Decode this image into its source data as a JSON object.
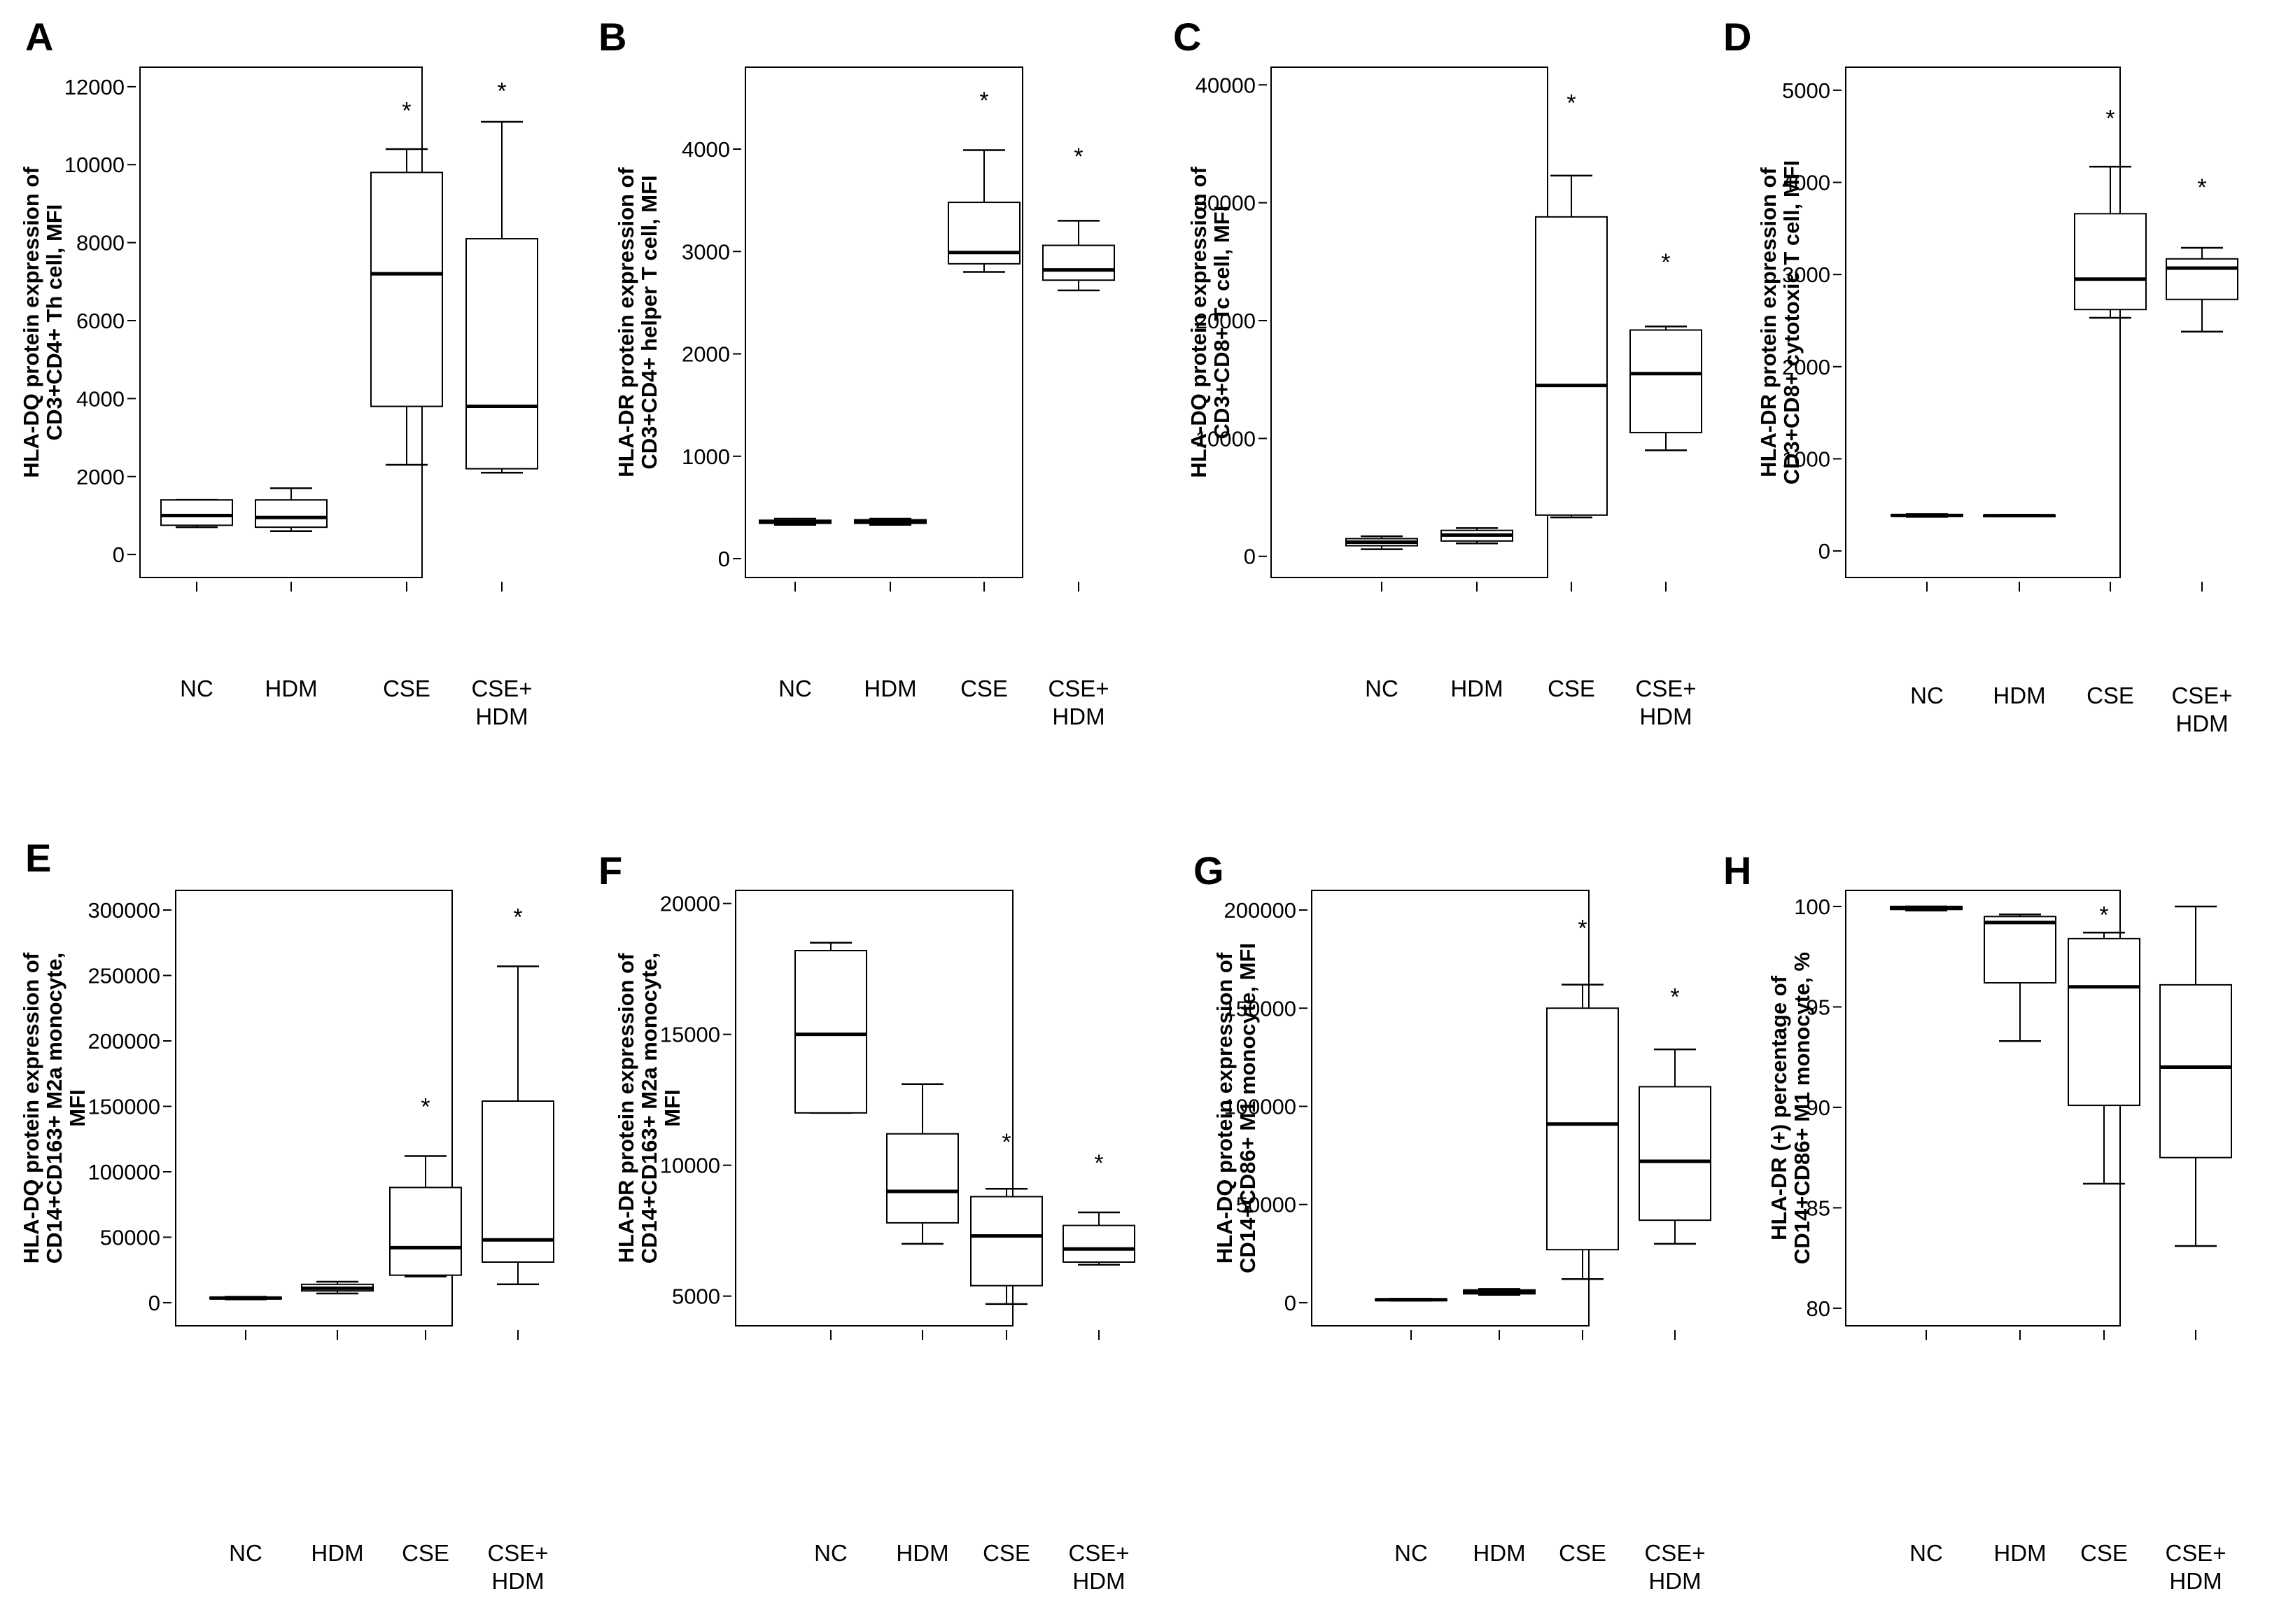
{
  "chart_data": [
    {
      "panel": "A",
      "type": "boxplot",
      "ylabel": [
        "HLA-DQ protein expression of",
        "CD3+CD4+ Th cell, MFI"
      ],
      "ylim": [
        -500,
        12500
      ],
      "yticks": [
        0,
        2000,
        4000,
        6000,
        8000,
        10000,
        12000
      ],
      "categories": [
        [
          "NC"
        ],
        [
          "HDM"
        ],
        [
          "CSE"
        ],
        [
          "CSE+",
          "HDM"
        ]
      ],
      "boxes": [
        {
          "min": 700,
          "q1": 750,
          "median": 1000,
          "q3": 1400,
          "max": 1400,
          "sig": ""
        },
        {
          "min": 600,
          "q1": 700,
          "median": 950,
          "q3": 1400,
          "max": 1700,
          "sig": ""
        },
        {
          "min": 2300,
          "q1": 3800,
          "median": 7200,
          "q3": 9800,
          "max": 10400,
          "sig": "*",
          "sig_value": 11400
        },
        {
          "min": 2100,
          "q1": 2200,
          "median": 3800,
          "q3": 8100,
          "max": 11100,
          "sig": "*",
          "sig_value": 11900
        }
      ]
    },
    {
      "panel": "B",
      "type": "boxplot",
      "ylabel": [
        "HLA-DR protein expression of",
        "CD3+CD4+ helper T cell, MFI"
      ],
      "ylim": [
        -150,
        4800
      ],
      "yticks": [
        0,
        1000,
        2000,
        3000,
        4000
      ],
      "categories": [
        [
          "NC"
        ],
        [
          "HDM"
        ],
        [
          "CSE"
        ],
        [
          "CSE+",
          "HDM"
        ]
      ],
      "boxes": [
        {
          "min": 330,
          "q1": 345,
          "median": 360,
          "q3": 375,
          "max": 390,
          "sig": ""
        },
        {
          "min": 330,
          "q1": 345,
          "median": 360,
          "q3": 380,
          "max": 390,
          "sig": ""
        },
        {
          "min": 2800,
          "q1": 2880,
          "median": 2990,
          "q3": 3480,
          "max": 3990,
          "sig": "*",
          "sig_value": 4480
        },
        {
          "min": 2620,
          "q1": 2720,
          "median": 2820,
          "q3": 3060,
          "max": 3300,
          "sig": "*",
          "sig_value": 3930
        }
      ]
    },
    {
      "panel": "C",
      "type": "boxplot",
      "ylabel": [
        "HLA-DQ protein expression of",
        "CD3+CD8+ Tc cell, MFI"
      ],
      "ylim": [
        -1500,
        41500
      ],
      "yticks": [
        0,
        10000,
        20000,
        30000,
        40000
      ],
      "categories": [
        [
          "NC"
        ],
        [
          "HDM"
        ],
        [
          "CSE"
        ],
        [
          "CSE+",
          "HDM"
        ]
      ],
      "boxes": [
        {
          "min": 600,
          "q1": 900,
          "median": 1200,
          "q3": 1500,
          "max": 1700,
          "sig": ""
        },
        {
          "min": 1100,
          "q1": 1300,
          "median": 1800,
          "q3": 2200,
          "max": 2400,
          "sig": ""
        },
        {
          "min": 3300,
          "q1": 3500,
          "median": 14500,
          "q3": 28800,
          "max": 32300,
          "sig": "*",
          "sig_value": 38500
        },
        {
          "min": 9000,
          "q1": 10500,
          "median": 15500,
          "q3": 19200,
          "max": 19500,
          "sig": "*",
          "sig_value": 25000
        }
      ]
    },
    {
      "panel": "D",
      "type": "boxplot",
      "ylabel": [
        "HLA-DR protein expression of",
        "CD3+CD8+ cytotoxic T cell, MFI"
      ],
      "ylim": [
        -250,
        5250
      ],
      "yticks": [
        0,
        1000,
        2000,
        3000,
        4000,
        5000
      ],
      "categories": [
        [
          "NC"
        ],
        [
          "HDM"
        ],
        [
          "CSE"
        ],
        [
          "CSE+",
          "HDM"
        ]
      ],
      "boxes": [
        {
          "min": 370,
          "q1": 380,
          "median": 385,
          "q3": 395,
          "max": 400,
          "sig": ""
        },
        {
          "min": 375,
          "q1": 378,
          "median": 383,
          "q3": 388,
          "max": 392,
          "sig": ""
        },
        {
          "min": 2530,
          "q1": 2620,
          "median": 2950,
          "q3": 3660,
          "max": 4170,
          "sig": "*",
          "sig_value": 4700
        },
        {
          "min": 2380,
          "q1": 2730,
          "median": 3070,
          "q3": 3170,
          "max": 3290,
          "sig": "*",
          "sig_value": 3950
        }
      ]
    },
    {
      "panel": "E",
      "type": "boxplot",
      "ylabel": [
        "HLA-DQ protein expression of",
        "CD14+CD163+ M2a monocyte,",
        "MFI"
      ],
      "ylim": [
        -15000,
        315000
      ],
      "yticks": [
        0,
        50000,
        100000,
        150000,
        200000,
        250000,
        300000
      ],
      "categories": [
        [
          "NC"
        ],
        [
          "HDM"
        ],
        [
          "CSE"
        ],
        [
          "CSE+",
          "HDM"
        ]
      ],
      "boxes": [
        {
          "min": 2500,
          "q1": 3000,
          "median": 3500,
          "q3": 4000,
          "max": 4500,
          "sig": ""
        },
        {
          "min": 7000,
          "q1": 9000,
          "median": 11000,
          "q3": 14000,
          "max": 16000,
          "sig": ""
        },
        {
          "min": 20000,
          "q1": 21000,
          "median": 42000,
          "q3": 88000,
          "max": 112000,
          "sig": "*",
          "sig_value": 150000
        },
        {
          "min": 14000,
          "q1": 31000,
          "median": 48000,
          "q3": 154000,
          "max": 257000,
          "sig": "*",
          "sig_value": 295000
        }
      ]
    },
    {
      "panel": "F",
      "type": "boxplot",
      "ylabel": [
        "HLA-DR protein expression of",
        "CD14+CD163+ M2a monocyte,",
        "MFI"
      ],
      "ylim": [
        4000,
        20500
      ],
      "yticks": [
        5000,
        10000,
        15000,
        20000
      ],
      "categories": [
        [
          "NC"
        ],
        [
          "HDM"
        ],
        [
          "CSE"
        ],
        [
          "CSE+",
          "HDM"
        ]
      ],
      "boxes": [
        {
          "min": 12000,
          "q1": 12000,
          "median": 15000,
          "q3": 18200,
          "max": 18500,
          "sig": ""
        },
        {
          "min": 7000,
          "q1": 7800,
          "median": 9000,
          "q3": 11200,
          "max": 13100,
          "sig": ""
        },
        {
          "min": 4700,
          "q1": 5400,
          "median": 7300,
          "q3": 8800,
          "max": 9100,
          "sig": "*",
          "sig_value": 10900
        },
        {
          "min": 6200,
          "q1": 6300,
          "median": 6800,
          "q3": 7700,
          "max": 8200,
          "sig": "*",
          "sig_value": 10100
        }
      ]
    },
    {
      "panel": "G",
      "type": "boxplot",
      "ylabel": [
        "HLA-DQ protein expression of",
        "CD14+CD86+ M1 monocyte, MFI"
      ],
      "ylim": [
        -10000,
        210000
      ],
      "yticks": [
        0,
        50000,
        100000,
        150000,
        200000
      ],
      "categories": [
        [
          "NC"
        ],
        [
          "HDM"
        ],
        [
          "CSE"
        ],
        [
          "CSE+",
          "HDM"
        ]
      ],
      "boxes": [
        {
          "min": 1000,
          "q1": 1300,
          "median": 1500,
          "q3": 1800,
          "max": 2000,
          "sig": ""
        },
        {
          "min": 4000,
          "q1": 4500,
          "median": 5500,
          "q3": 6500,
          "max": 7000,
          "sig": ""
        },
        {
          "min": 12000,
          "q1": 27000,
          "median": 91000,
          "q3": 150000,
          "max": 162000,
          "sig": "*",
          "sig_value": 191000
        },
        {
          "min": 30000,
          "q1": 42000,
          "median": 72000,
          "q3": 110000,
          "max": 129000,
          "sig": "*",
          "sig_value": 156000
        }
      ]
    },
    {
      "panel": "H",
      "type": "boxplot",
      "ylabel": [
        "HLA-DR (+) percentage of",
        "CD14+CD86+ M1 monocyte, %"
      ],
      "ylim": [
        79.3,
        100.8
      ],
      "yticks": [
        80,
        85,
        90,
        95,
        100
      ],
      "categories": [
        [
          "NC"
        ],
        [
          "HDM"
        ],
        [
          "CSE"
        ],
        [
          "CSE+",
          "HDM"
        ]
      ],
      "boxes": [
        {
          "min": 99.8,
          "q1": 99.85,
          "median": 99.95,
          "q3": 100.0,
          "max": 100.0,
          "sig": ""
        },
        {
          "min": 93.3,
          "q1": 96.2,
          "median": 99.2,
          "q3": 99.5,
          "max": 99.6,
          "sig": ""
        },
        {
          "min": 86.2,
          "q1": 90.1,
          "median": 96.0,
          "q3": 98.4,
          "max": 98.7,
          "sig": "*",
          "sig_value": 99.6
        },
        {
          "min": 83.1,
          "q1": 87.5,
          "median": 92.0,
          "q3": 96.1,
          "max": 100.0,
          "sig": "",
          "sig_value": null
        }
      ]
    }
  ]
}
